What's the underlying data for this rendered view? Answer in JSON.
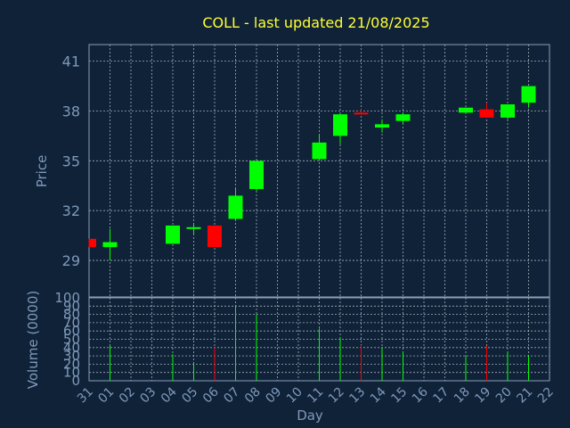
{
  "chart_data": {
    "type": "candlestick",
    "title": "COLL - last updated 21/08/2025",
    "ylabel": "Price",
    "vlabel": "Volume (0000)",
    "xlabel": "Day",
    "ylim": [
      26.8,
      42.0
    ],
    "yticks": [
      29,
      32,
      35,
      38,
      41
    ],
    "vlim": [
      0,
      100
    ],
    "vticks": [
      0,
      10,
      20,
      30,
      40,
      50,
      60,
      70,
      80,
      90,
      100
    ],
    "grid": true,
    "up_color": "#00ff00",
    "down_color": "#ff0000",
    "xticks": [
      "31",
      "01",
      "02",
      "03",
      "04",
      "05",
      "06",
      "07",
      "08",
      "09",
      "10",
      "11",
      "12",
      "13",
      "14",
      "15",
      "16",
      "17",
      "18",
      "19",
      "20",
      "21",
      "22"
    ],
    "candles": [
      {
        "day": "31",
        "open": 30.3,
        "close": 29.8,
        "high": 30.3,
        "low": 29.8,
        "volume": 0
      },
      {
        "day": "01",
        "open": 29.8,
        "close": 30.1,
        "high": 30.9,
        "low": 29.0,
        "volume": 42
      },
      {
        "day": "04",
        "open": 30.0,
        "close": 31.1,
        "high": 31.1,
        "low": 30.0,
        "volume": 32
      },
      {
        "day": "05",
        "open": 30.9,
        "close": 31.0,
        "high": 31.2,
        "low": 30.6,
        "volume": 22
      },
      {
        "day": "06",
        "open": 31.1,
        "close": 29.8,
        "high": 31.1,
        "low": 29.8,
        "volume": 40
      },
      {
        "day": "07",
        "open": 31.5,
        "close": 32.9,
        "high": 33.4,
        "low": 31.4,
        "volume": 90
      },
      {
        "day": "08",
        "open": 33.3,
        "close": 35.0,
        "high": 35.0,
        "low": 33.2,
        "volume": 80
      },
      {
        "day": "11",
        "open": 35.1,
        "close": 36.1,
        "high": 36.6,
        "low": 35.0,
        "volume": 63
      },
      {
        "day": "12",
        "open": 36.5,
        "close": 37.8,
        "high": 37.8,
        "low": 36.0,
        "volume": 52
      },
      {
        "day": "13",
        "open": 37.9,
        "close": 37.8,
        "high": 38.1,
        "low": 37.8,
        "volume": 43
      },
      {
        "day": "14",
        "open": 37.0,
        "close": 37.2,
        "high": 37.5,
        "low": 36.7,
        "volume": 39
      },
      {
        "day": "15",
        "open": 37.4,
        "close": 37.8,
        "high": 37.9,
        "low": 37.2,
        "volume": 35
      },
      {
        "day": "18",
        "open": 37.9,
        "close": 38.2,
        "high": 38.2,
        "low": 37.9,
        "volume": 30
      },
      {
        "day": "19",
        "open": 38.1,
        "close": 37.6,
        "high": 38.5,
        "low": 37.6,
        "volume": 42
      },
      {
        "day": "20",
        "open": 37.6,
        "close": 38.4,
        "high": 38.4,
        "low": 37.5,
        "volume": 35
      },
      {
        "day": "21",
        "open": 38.5,
        "close": 39.5,
        "high": 39.5,
        "low": 38.2,
        "volume": 30
      }
    ]
  }
}
